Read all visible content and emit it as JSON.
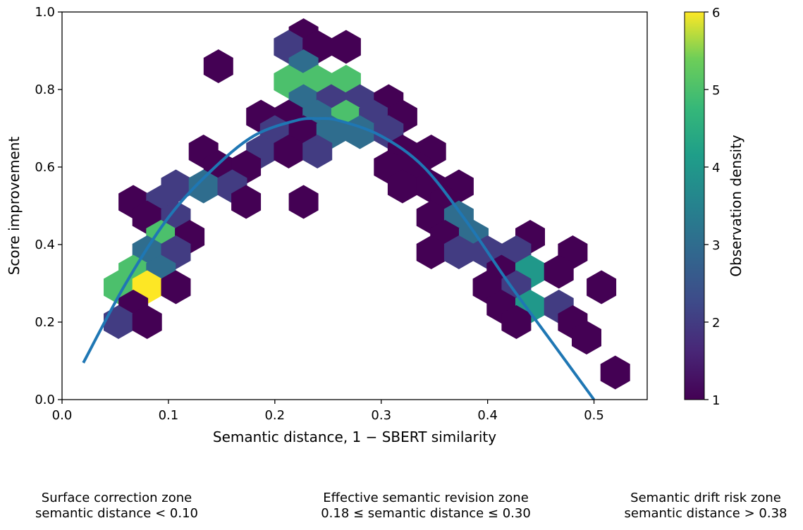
{
  "chart_data": {
    "type": "hexbin",
    "xlabel": "Semantic distance, 1 − SBERT similarity",
    "ylabel": "Score improvement",
    "xlim": [
      0.0,
      0.55
    ],
    "ylim": [
      0.0,
      1.0
    ],
    "xticks": [
      "0.0",
      "0.1",
      "0.2",
      "0.3",
      "0.4",
      "0.5"
    ],
    "yticks": [
      "0.0",
      "0.2",
      "0.4",
      "0.6",
      "0.8",
      "1.0"
    ],
    "grid": false,
    "colorbar": {
      "label": "Observation density",
      "range": [
        1,
        6
      ],
      "ticks": [
        "1",
        "2",
        "3",
        "4",
        "5",
        "6"
      ],
      "colormap": "viridis"
    },
    "fit_curve": {
      "color": "#1f77b4",
      "x_range": [
        0.02,
        0.5
      ],
      "x": [
        0.02,
        0.06,
        0.1,
        0.14,
        0.18,
        0.22,
        0.24,
        0.26,
        0.3,
        0.34,
        0.38,
        0.42,
        0.46,
        0.5
      ],
      "y": [
        0.095,
        0.3,
        0.47,
        0.59,
        0.68,
        0.72,
        0.725,
        0.72,
        0.68,
        0.6,
        0.46,
        0.3,
        0.15,
        0.0
      ]
    },
    "bins": [
      {
        "x": 0.227,
        "y": 0.94,
        "count": 1
      },
      {
        "x": 0.213,
        "y": 0.91,
        "count": 2
      },
      {
        "x": 0.24,
        "y": 0.91,
        "count": 1
      },
      {
        "x": 0.267,
        "y": 0.91,
        "count": 1
      },
      {
        "x": 0.147,
        "y": 0.86,
        "count": 1
      },
      {
        "x": 0.227,
        "y": 0.86,
        "count": 3
      },
      {
        "x": 0.213,
        "y": 0.82,
        "count": 5
      },
      {
        "x": 0.24,
        "y": 0.82,
        "count": 5
      },
      {
        "x": 0.267,
        "y": 0.82,
        "count": 5
      },
      {
        "x": 0.227,
        "y": 0.77,
        "count": 3
      },
      {
        "x": 0.253,
        "y": 0.77,
        "count": 2
      },
      {
        "x": 0.28,
        "y": 0.77,
        "count": 2
      },
      {
        "x": 0.307,
        "y": 0.77,
        "count": 1
      },
      {
        "x": 0.187,
        "y": 0.73,
        "count": 1
      },
      {
        "x": 0.213,
        "y": 0.73,
        "count": 1
      },
      {
        "x": 0.24,
        "y": 0.73,
        "count": 3
      },
      {
        "x": 0.267,
        "y": 0.73,
        "count": 5
      },
      {
        "x": 0.293,
        "y": 0.73,
        "count": 2
      },
      {
        "x": 0.32,
        "y": 0.73,
        "count": 1
      },
      {
        "x": 0.2,
        "y": 0.69,
        "count": 2
      },
      {
        "x": 0.227,
        "y": 0.69,
        "count": 1
      },
      {
        "x": 0.253,
        "y": 0.69,
        "count": 3
      },
      {
        "x": 0.28,
        "y": 0.69,
        "count": 3
      },
      {
        "x": 0.307,
        "y": 0.69,
        "count": 2
      },
      {
        "x": 0.133,
        "y": 0.64,
        "count": 1
      },
      {
        "x": 0.187,
        "y": 0.64,
        "count": 2
      },
      {
        "x": 0.213,
        "y": 0.64,
        "count": 1
      },
      {
        "x": 0.24,
        "y": 0.64,
        "count": 2
      },
      {
        "x": 0.32,
        "y": 0.64,
        "count": 1
      },
      {
        "x": 0.347,
        "y": 0.64,
        "count": 1
      },
      {
        "x": 0.147,
        "y": 0.6,
        "count": 1
      },
      {
        "x": 0.173,
        "y": 0.6,
        "count": 1
      },
      {
        "x": 0.307,
        "y": 0.6,
        "count": 1
      },
      {
        "x": 0.333,
        "y": 0.6,
        "count": 1
      },
      {
        "x": 0.107,
        "y": 0.55,
        "count": 2
      },
      {
        "x": 0.133,
        "y": 0.55,
        "count": 3
      },
      {
        "x": 0.16,
        "y": 0.55,
        "count": 2
      },
      {
        "x": 0.32,
        "y": 0.55,
        "count": 1
      },
      {
        "x": 0.347,
        "y": 0.55,
        "count": 1
      },
      {
        "x": 0.373,
        "y": 0.55,
        "count": 1
      },
      {
        "x": 0.067,
        "y": 0.51,
        "count": 1
      },
      {
        "x": 0.093,
        "y": 0.51,
        "count": 2
      },
      {
        "x": 0.173,
        "y": 0.51,
        "count": 1
      },
      {
        "x": 0.227,
        "y": 0.51,
        "count": 1
      },
      {
        "x": 0.36,
        "y": 0.51,
        "count": 1
      },
      {
        "x": 0.08,
        "y": 0.47,
        "count": 1
      },
      {
        "x": 0.107,
        "y": 0.47,
        "count": 2
      },
      {
        "x": 0.347,
        "y": 0.47,
        "count": 1
      },
      {
        "x": 0.373,
        "y": 0.47,
        "count": 3
      },
      {
        "x": 0.093,
        "y": 0.42,
        "count": 5
      },
      {
        "x": 0.12,
        "y": 0.42,
        "count": 1
      },
      {
        "x": 0.36,
        "y": 0.42,
        "count": 1
      },
      {
        "x": 0.387,
        "y": 0.42,
        "count": 3
      },
      {
        "x": 0.44,
        "y": 0.42,
        "count": 1
      },
      {
        "x": 0.08,
        "y": 0.38,
        "count": 3
      },
      {
        "x": 0.107,
        "y": 0.38,
        "count": 2
      },
      {
        "x": 0.347,
        "y": 0.38,
        "count": 1
      },
      {
        "x": 0.373,
        "y": 0.38,
        "count": 2
      },
      {
        "x": 0.4,
        "y": 0.38,
        "count": 2
      },
      {
        "x": 0.427,
        "y": 0.38,
        "count": 2
      },
      {
        "x": 0.48,
        "y": 0.38,
        "count": 1
      },
      {
        "x": 0.067,
        "y": 0.33,
        "count": 5
      },
      {
        "x": 0.093,
        "y": 0.33,
        "count": 3
      },
      {
        "x": 0.413,
        "y": 0.33,
        "count": 1
      },
      {
        "x": 0.44,
        "y": 0.33,
        "count": 4
      },
      {
        "x": 0.467,
        "y": 0.33,
        "count": 1
      },
      {
        "x": 0.053,
        "y": 0.29,
        "count": 5
      },
      {
        "x": 0.08,
        "y": 0.29,
        "count": 6
      },
      {
        "x": 0.107,
        "y": 0.29,
        "count": 1
      },
      {
        "x": 0.4,
        "y": 0.29,
        "count": 1
      },
      {
        "x": 0.427,
        "y": 0.29,
        "count": 2
      },
      {
        "x": 0.507,
        "y": 0.29,
        "count": 1
      },
      {
        "x": 0.067,
        "y": 0.24,
        "count": 1
      },
      {
        "x": 0.413,
        "y": 0.24,
        "count": 1
      },
      {
        "x": 0.44,
        "y": 0.24,
        "count": 4
      },
      {
        "x": 0.467,
        "y": 0.24,
        "count": 2
      },
      {
        "x": 0.053,
        "y": 0.2,
        "count": 2
      },
      {
        "x": 0.08,
        "y": 0.2,
        "count": 1
      },
      {
        "x": 0.427,
        "y": 0.2,
        "count": 1
      },
      {
        "x": 0.48,
        "y": 0.2,
        "count": 1
      },
      {
        "x": 0.493,
        "y": 0.16,
        "count": 1
      },
      {
        "x": 0.52,
        "y": 0.07,
        "count": 1
      }
    ]
  },
  "zones": [
    {
      "title": "Surface correction zone",
      "range": "semantic distance < 0.10"
    },
    {
      "title": "Effective semantic revision zone",
      "range": "0.18 ≤ semantic distance ≤ 0.30"
    },
    {
      "title": "Semantic drift risk zone",
      "range": "semantic distance > 0.38"
    }
  ]
}
